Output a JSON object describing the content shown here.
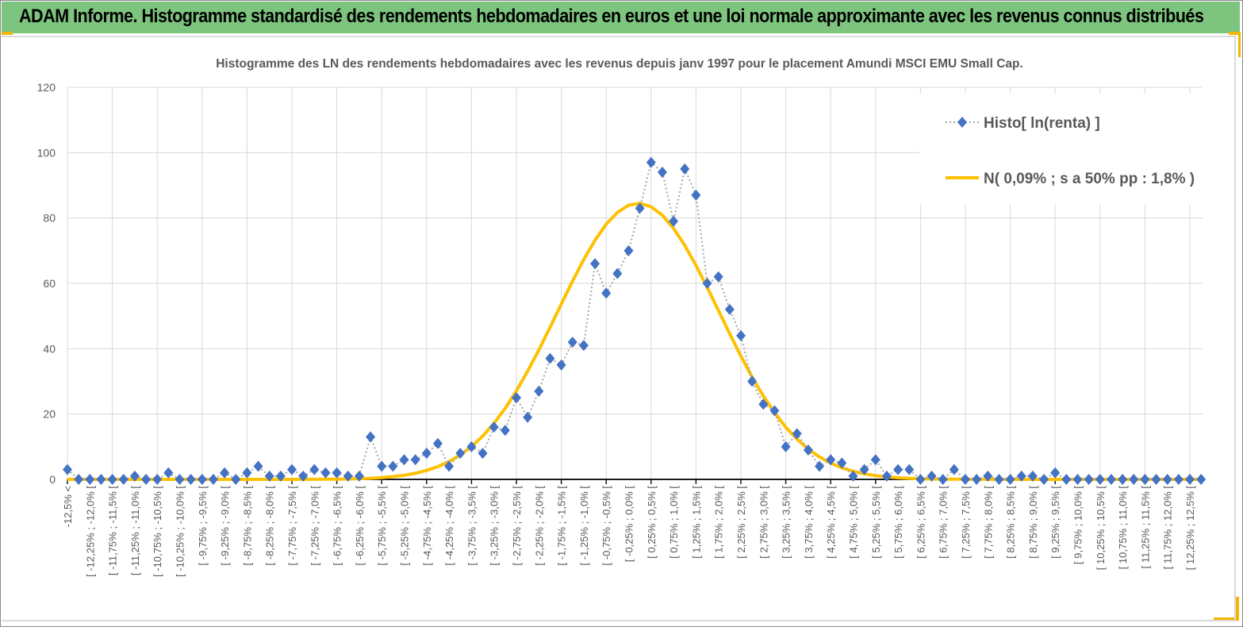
{
  "header": {
    "title": "ADAM Informe. Histogramme standardisé des rendements hebdomadaires en euros et une loi normale approximante avec les revenus connus distribués",
    "background_color": "#7dc47e",
    "accent_color": "#f2b600"
  },
  "chart_data": {
    "type": "line",
    "title": "Histogramme des LN des rendements hebdomadaires avec les revenus depuis janv 1997 pour le placement Amundi MSCI EMU Small Cap.",
    "xlabel": "",
    "ylabel": "",
    "ylim": [
      0,
      120
    ],
    "yticks": [
      "0",
      "20",
      "40",
      "60",
      "80",
      "100",
      "120"
    ],
    "grid": true,
    "legend_position": "top-right",
    "x_tick_labels": [
      "-12,5% <",
      "[ -12,25% ; -12,0% [",
      "[ -11,75% ; -11,5% [",
      "[ -11,25% ; -11,0% [",
      "[ -10,75% ; -10,5% [",
      "[ -10,25% ; -10,0% [",
      "[ -9,75% ; -9,5% [",
      "[ -9,25% ; -9,0% [",
      "[ -8,75% ; -8,5% [",
      "[ -8,25% ; -8,0% [",
      "[ -7,75% ; -7,5% [",
      "[ -7,25% ; -7,0% [",
      "[ -6,75% ; -6,5% [",
      "[ -6,25% ; -6,0% [",
      "[ -5,75% ; -5,5% [",
      "[ -5,25% ; -5,0% [",
      "[ -4,75% ; -4,5% [",
      "[ -4,25% ; -4,0% [",
      "[ -3,75% ; -3,5% [",
      "[ -3,25% ; -3,0% [",
      "[ -2,75% ; -2,5% [",
      "[ -2,25% ; -2,0% [",
      "[ -1,75% ; -1,5% [",
      "[ -1,25% ; -1,0% [",
      "[ -0,75% ; -0,5% [",
      "[ -0,25% ; 0,0% [",
      "[ 0,25% ; 0,5% [",
      "[ 0,75% ; 1,0% [",
      "[ 1,25% ; 1,5% [",
      "[ 1,75% ; 2,0% [",
      "[ 2,25% ; 2,5% [",
      "[ 2,75% ; 3,0% [",
      "[ 3,25% ; 3,5% [",
      "[ 3,75% ; 4,0% [",
      "[ 4,25% ; 4,5% [",
      "[ 4,75% ; 5,0% [",
      "[ 5,25% ; 5,5% [",
      "[ 5,75% ; 6,0% [",
      "[ 6,25% ; 6,5% [",
      "[ 6,75% ; 7,0% [",
      "[ 7,25% ; 7,5% [",
      "[ 7,75% ; 8,0% [",
      "[ 8,25% ; 8,5% [",
      "[ 8,75% ; 9,0% [",
      "[ 9,25% ; 9,5% [",
      "[ 9,75% ; 10,0% [",
      "[ 10,25% ; 10,5% [",
      "[ 10,75% ; 11,0% [",
      "[ 11,25% ; 11,5% [",
      "[ 11,75% ; 12,0% [",
      "[ 12,25% ; 12,5% ["
    ],
    "bin_width_pct": 0.25,
    "series": [
      {
        "name": "Histo[ ln(renta) ]",
        "color": "#4472c4",
        "line_color": "#a6a6a6",
        "marker": "diamond",
        "values": [
          3,
          0,
          0,
          0,
          0,
          0,
          1,
          0,
          0,
          2,
          0,
          0,
          0,
          0,
          2,
          0,
          2,
          4,
          1,
          1,
          3,
          1,
          3,
          2,
          2,
          1,
          1,
          13,
          4,
          4,
          6,
          6,
          8,
          11,
          4,
          8,
          10,
          8,
          16,
          15,
          25,
          19,
          27,
          37,
          35,
          42,
          41,
          66,
          57,
          63,
          70,
          83,
          97,
          94,
          79,
          95,
          87,
          60,
          62,
          52,
          44,
          30,
          23,
          21,
          10,
          14,
          9,
          4,
          6,
          5,
          1,
          3,
          6,
          1,
          3,
          3,
          0,
          1,
          0,
          3,
          0,
          0,
          1,
          0,
          0,
          1,
          1,
          0,
          2,
          0,
          0,
          0,
          0,
          0,
          0,
          0,
          0,
          0,
          0,
          0,
          0,
          0
        ]
      },
      {
        "name": "N( 0,09% ; s a 50% pp : 1,8% )",
        "color": "#ffc000",
        "distribution": "normal",
        "mean_pct": 0.09,
        "sd_pct": 1.8
      }
    ]
  }
}
